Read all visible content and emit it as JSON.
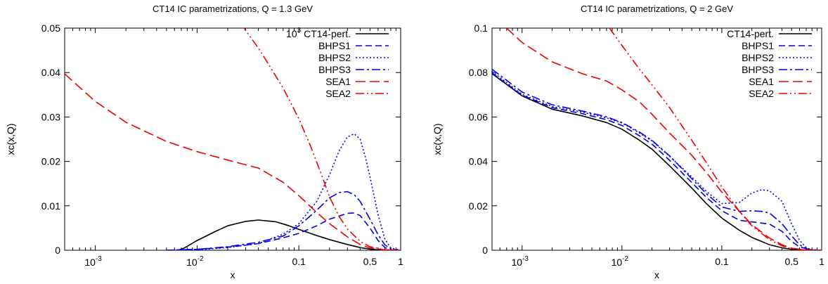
{
  "chart_data": [
    {
      "type": "line",
      "title": "CT14 IC parametrizations, Q  =  1.3 GeV",
      "xlabel": "x",
      "ylabel": "xc(x,Q)",
      "xscale": "log",
      "xlim": [
        0.0005,
        1
      ],
      "ylim": [
        0,
        0.05
      ],
      "xticks": [
        {
          "v": 0.001,
          "base": "10",
          "exp": "-3"
        },
        {
          "v": 0.01,
          "base": "10",
          "exp": "-2"
        },
        {
          "v": 0.1,
          "label": "0.1"
        },
        {
          "v": 0.5,
          "label": "0.5"
        },
        {
          "v": 1,
          "label": "1"
        }
      ],
      "yticks": [
        {
          "v": 0,
          "label": "0"
        },
        {
          "v": 0.01,
          "label": "0.01"
        },
        {
          "v": 0.02,
          "label": "0.02"
        },
        {
          "v": 0.03,
          "label": "0.03"
        },
        {
          "v": 0.04,
          "label": "0.04"
        },
        {
          "v": 0.05,
          "label": "0.05"
        }
      ],
      "legend_position": "top-right",
      "series": [
        {
          "name": "CT14-pert.",
          "name_prefix": {
            "base": "10",
            "exp": "3"
          },
          "color": "#000000",
          "dash": "solid",
          "points": [
            [
              0.0065,
              0
            ],
            [
              0.0075,
              0.0005
            ],
            [
              0.01,
              0.0022
            ],
            [
              0.015,
              0.0042
            ],
            [
              0.02,
              0.0055
            ],
            [
              0.03,
              0.0065
            ],
            [
              0.04,
              0.0068
            ],
            [
              0.06,
              0.0064
            ],
            [
              0.08,
              0.0055
            ],
            [
              0.1,
              0.0047
            ],
            [
              0.15,
              0.0033
            ],
            [
              0.2,
              0.0024
            ],
            [
              0.3,
              0.0013
            ],
            [
              0.4,
              0.0006
            ],
            [
              0.5,
              0.00025
            ],
            [
              0.6,
              0.0001
            ],
            [
              0.7,
              3e-05
            ],
            [
              1,
              0
            ]
          ]
        },
        {
          "name": "BHPS1",
          "color": "#0000ee",
          "dash": "dashed",
          "points": [
            [
              0.005,
              0
            ],
            [
              0.01,
              0.0002
            ],
            [
              0.02,
              0.0007
            ],
            [
              0.04,
              0.0015
            ],
            [
              0.07,
              0.0028
            ],
            [
              0.1,
              0.0038
            ],
            [
              0.15,
              0.0055
            ],
            [
              0.2,
              0.007
            ],
            [
              0.3,
              0.0083
            ],
            [
              0.35,
              0.0084
            ],
            [
              0.4,
              0.0078
            ],
            [
              0.5,
              0.005
            ],
            [
              0.6,
              0.0022
            ],
            [
              0.7,
              0.0006
            ],
            [
              0.8,
              0.0001
            ],
            [
              1,
              0
            ]
          ]
        },
        {
          "name": "BHPS2",
          "color": "#0000ee",
          "dash": "dotted",
          "points": [
            [
              0.005,
              0
            ],
            [
              0.01,
              0.0001
            ],
            [
              0.02,
              0.0006
            ],
            [
              0.04,
              0.0015
            ],
            [
              0.07,
              0.0036
            ],
            [
              0.1,
              0.006
            ],
            [
              0.15,
              0.011
            ],
            [
              0.2,
              0.017
            ],
            [
              0.25,
              0.0225
            ],
            [
              0.3,
              0.0255
            ],
            [
              0.35,
              0.0262
            ],
            [
              0.4,
              0.025
            ],
            [
              0.45,
              0.021
            ],
            [
              0.5,
              0.0165
            ],
            [
              0.6,
              0.008
            ],
            [
              0.7,
              0.0025
            ],
            [
              0.8,
              0.0005
            ],
            [
              1,
              0
            ]
          ]
        },
        {
          "name": "BHPS3",
          "color": "#0000ee",
          "dash": "dashdot",
          "points": [
            [
              0.005,
              0
            ],
            [
              0.01,
              0.0002
            ],
            [
              0.02,
              0.0008
            ],
            [
              0.04,
              0.0018
            ],
            [
              0.07,
              0.0032
            ],
            [
              0.1,
              0.0055
            ],
            [
              0.15,
              0.009
            ],
            [
              0.2,
              0.0118
            ],
            [
              0.25,
              0.013
            ],
            [
              0.3,
              0.0132
            ],
            [
              0.35,
              0.0125
            ],
            [
              0.4,
              0.011
            ],
            [
              0.5,
              0.007
            ],
            [
              0.6,
              0.0035
            ],
            [
              0.7,
              0.0012
            ],
            [
              0.8,
              0.0003
            ],
            [
              1,
              0
            ]
          ]
        },
        {
          "name": "SEA1",
          "color": "#ee0000",
          "dash": "longdash",
          "points": [
            [
              0.0005,
              0.0397
            ],
            [
              0.001,
              0.0335
            ],
            [
              0.002,
              0.0288
            ],
            [
              0.005,
              0.0245
            ],
            [
              0.01,
              0.0222
            ],
            [
              0.02,
              0.0203
            ],
            [
              0.04,
              0.0185
            ],
            [
              0.07,
              0.0153
            ],
            [
              0.1,
              0.0123
            ],
            [
              0.15,
              0.0085
            ],
            [
              0.2,
              0.006
            ],
            [
              0.3,
              0.003
            ],
            [
              0.4,
              0.0013
            ],
            [
              0.5,
              0.0005
            ],
            [
              0.7,
              0.0001
            ],
            [
              1,
              0
            ]
          ]
        },
        {
          "name": "SEA2",
          "color": "#ee0000",
          "dash": "dashdotdot",
          "points": [
            [
              0.027,
              0.051
            ],
            [
              0.03,
              0.0495
            ],
            [
              0.04,
              0.0455
            ],
            [
              0.05,
              0.042
            ],
            [
              0.07,
              0.0365
            ],
            [
              0.1,
              0.0296
            ],
            [
              0.13,
              0.0235
            ],
            [
              0.17,
              0.0165
            ],
            [
              0.2,
              0.012
            ],
            [
              0.25,
              0.0075
            ],
            [
              0.3,
              0.0048
            ],
            [
              0.4,
              0.002
            ],
            [
              0.5,
              0.0008
            ],
            [
              0.7,
              0.0001
            ],
            [
              1,
              0
            ]
          ]
        }
      ]
    },
    {
      "type": "line",
      "title": "CT14 IC parametrizations, Q  =  2 GeV",
      "xlabel": "x",
      "ylabel": "xc(x,Q)",
      "xscale": "log",
      "xlim": [
        0.0005,
        1
      ],
      "ylim": [
        0,
        0.1
      ],
      "xticks": [
        {
          "v": 0.001,
          "base": "10",
          "exp": "-3"
        },
        {
          "v": 0.01,
          "base": "10",
          "exp": "-2"
        },
        {
          "v": 0.1,
          "label": "0.1"
        },
        {
          "v": 0.5,
          "label": "0.5"
        },
        {
          "v": 1,
          "label": "1"
        }
      ],
      "yticks": [
        {
          "v": 0,
          "label": "0"
        },
        {
          "v": 0.02,
          "label": "0.02"
        },
        {
          "v": 0.04,
          "label": "0.04"
        },
        {
          "v": 0.06,
          "label": "0.06"
        },
        {
          "v": 0.08,
          "label": "0.08"
        },
        {
          "v": 0.1,
          "label": "0.1"
        }
      ],
      "legend_position": "top-right",
      "series": [
        {
          "name": "CT14-pert.",
          "color": "#000000",
          "dash": "solid",
          "points": [
            [
              0.0005,
              0.0795
            ],
            [
              0.001,
              0.0695
            ],
            [
              0.002,
              0.0635
            ],
            [
              0.004,
              0.0605
            ],
            [
              0.007,
              0.0575
            ],
            [
              0.01,
              0.0545
            ],
            [
              0.015,
              0.0495
            ],
            [
              0.02,
              0.0455
            ],
            [
              0.03,
              0.038
            ],
            [
              0.05,
              0.028
            ],
            [
              0.07,
              0.021
            ],
            [
              0.1,
              0.0145
            ],
            [
              0.15,
              0.009
            ],
            [
              0.2,
              0.0058
            ],
            [
              0.3,
              0.0025
            ],
            [
              0.4,
              0.0011
            ],
            [
              0.5,
              0.0004
            ],
            [
              0.7,
              0.0001
            ],
            [
              1,
              0
            ]
          ]
        },
        {
          "name": "BHPS1",
          "color": "#0000ee",
          "dash": "dashed",
          "points": [
            [
              0.0005,
              0.0798
            ],
            [
              0.001,
              0.0698
            ],
            [
              0.002,
              0.0642
            ],
            [
              0.004,
              0.0615
            ],
            [
              0.007,
              0.0588
            ],
            [
              0.01,
              0.0562
            ],
            [
              0.015,
              0.0515
            ],
            [
              0.02,
              0.0478
            ],
            [
              0.03,
              0.0405
            ],
            [
              0.05,
              0.0305
            ],
            [
              0.07,
              0.0238
            ],
            [
              0.1,
              0.0178
            ],
            [
              0.15,
              0.0135
            ],
            [
              0.2,
              0.0128
            ],
            [
              0.3,
              0.0118
            ],
            [
              0.4,
              0.0085
            ],
            [
              0.5,
              0.004
            ],
            [
              0.6,
              0.0015
            ],
            [
              0.8,
              0.0002
            ],
            [
              1,
              0
            ]
          ]
        },
        {
          "name": "BHPS2",
          "color": "#0000ee",
          "dash": "dotted",
          "points": [
            [
              0.0005,
              0.0805
            ],
            [
              0.001,
              0.0702
            ],
            [
              0.002,
              0.0647
            ],
            [
              0.004,
              0.0622
            ],
            [
              0.007,
              0.0596
            ],
            [
              0.01,
              0.0573
            ],
            [
              0.015,
              0.0528
            ],
            [
              0.02,
              0.0492
            ],
            [
              0.03,
              0.0423
            ],
            [
              0.05,
              0.033
            ],
            [
              0.07,
              0.0265
            ],
            [
              0.1,
              0.021
            ],
            [
              0.15,
              0.0215
            ],
            [
              0.2,
              0.0258
            ],
            [
              0.25,
              0.0272
            ],
            [
              0.3,
              0.0268
            ],
            [
              0.4,
              0.022
            ],
            [
              0.5,
              0.012
            ],
            [
              0.6,
              0.0045
            ],
            [
              0.7,
              0.0012
            ],
            [
              0.8,
              0.0002
            ],
            [
              1,
              0
            ]
          ]
        },
        {
          "name": "BHPS3",
          "color": "#0000ee",
          "dash": "dashdot",
          "points": [
            [
              0.0005,
              0.0815
            ],
            [
              0.001,
              0.0712
            ],
            [
              0.002,
              0.0655
            ],
            [
              0.004,
              0.0627
            ],
            [
              0.007,
              0.0601
            ],
            [
              0.01,
              0.0575
            ],
            [
              0.015,
              0.0532
            ],
            [
              0.02,
              0.0495
            ],
            [
              0.03,
              0.0425
            ],
            [
              0.05,
              0.0322
            ],
            [
              0.07,
              0.0255
            ],
            [
              0.1,
              0.0195
            ],
            [
              0.15,
              0.0175
            ],
            [
              0.2,
              0.0178
            ],
            [
              0.25,
              0.0175
            ],
            [
              0.3,
              0.0168
            ],
            [
              0.4,
              0.012
            ],
            [
              0.5,
              0.0065
            ],
            [
              0.6,
              0.0025
            ],
            [
              0.7,
              0.0007
            ],
            [
              0.8,
              0.0001
            ],
            [
              1,
              0
            ]
          ]
        },
        {
          "name": "SEA1",
          "color": "#ee0000",
          "dash": "longdash",
          "points": [
            [
              0.0007,
              0.1
            ],
            [
              0.001,
              0.0935
            ],
            [
              0.002,
              0.0848
            ],
            [
              0.004,
              0.0795
            ],
            [
              0.007,
              0.0762
            ],
            [
              0.01,
              0.0722
            ],
            [
              0.015,
              0.0668
            ],
            [
              0.02,
              0.0612
            ],
            [
              0.03,
              0.0528
            ],
            [
              0.05,
              0.0428
            ],
            [
              0.07,
              0.035
            ],
            [
              0.1,
              0.0262
            ],
            [
              0.15,
              0.0175
            ],
            [
              0.2,
              0.0115
            ],
            [
              0.3,
              0.0055
            ],
            [
              0.4,
              0.0025
            ],
            [
              0.5,
              0.0009
            ],
            [
              0.7,
              0.0002
            ],
            [
              1,
              0
            ]
          ]
        },
        {
          "name": "SEA2",
          "color": "#ee0000",
          "dash": "dashdotdot",
          "points": [
            [
              0.0075,
              0.1
            ],
            [
              0.01,
              0.0922
            ],
            [
              0.015,
              0.0815
            ],
            [
              0.02,
              0.0745
            ],
            [
              0.03,
              0.0642
            ],
            [
              0.05,
              0.0495
            ],
            [
              0.07,
              0.0395
            ],
            [
              0.1,
              0.0285
            ],
            [
              0.15,
              0.0175
            ],
            [
              0.2,
              0.011
            ],
            [
              0.3,
              0.0048
            ],
            [
              0.4,
              0.002
            ],
            [
              0.5,
              0.0007
            ],
            [
              0.7,
              0.0001
            ],
            [
              1,
              0
            ]
          ]
        }
      ]
    }
  ]
}
